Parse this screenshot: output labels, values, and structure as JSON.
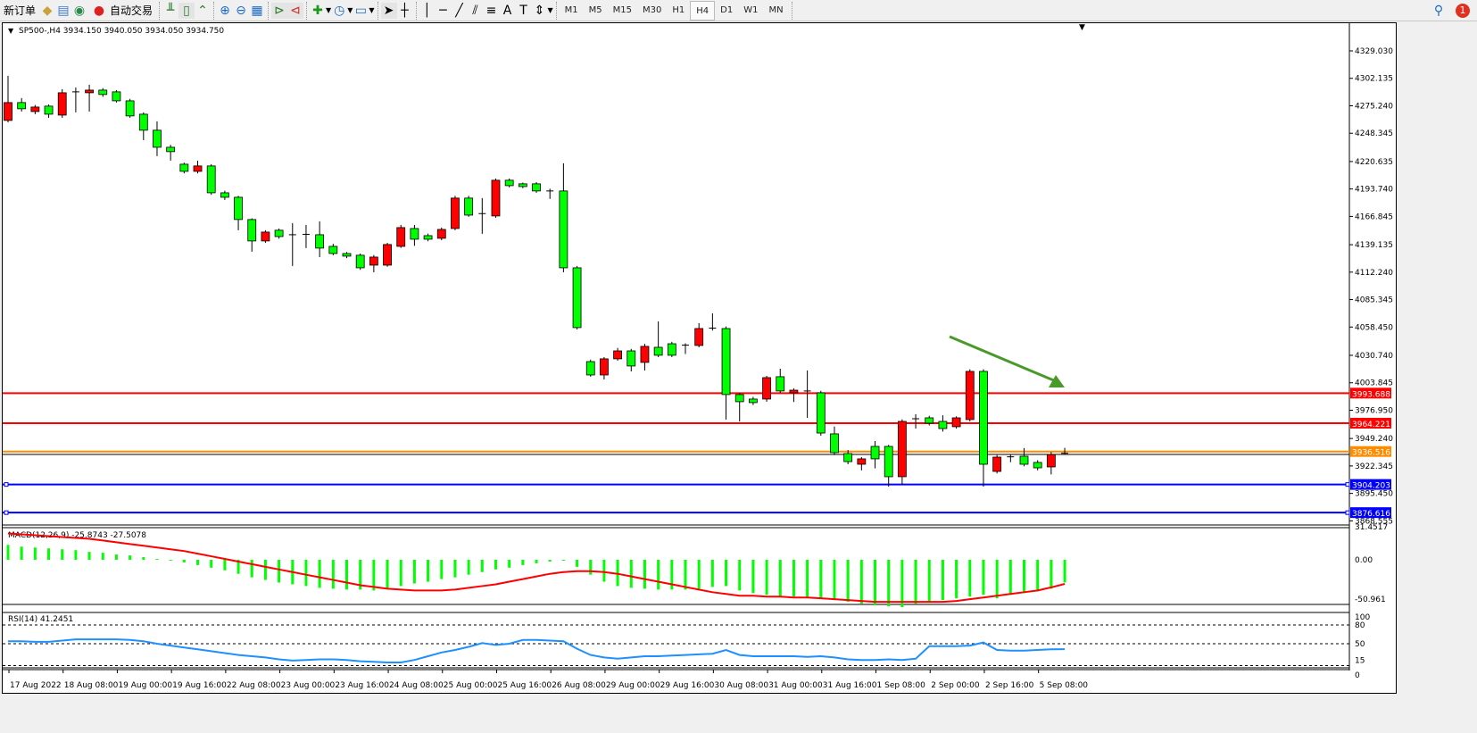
{
  "toolbar": {
    "new_order": "新订单",
    "auto_trading": "自动交易",
    "icons": [
      "gold-bars-icon",
      "market-watch-icon",
      "signal-icon",
      "auto-trading-icon",
      "bar-chart-icon",
      "candlestick-icon",
      "line-chart-icon",
      "zoom-in-icon",
      "zoom-out-icon",
      "tile-windows-icon",
      "autoscroll-icon",
      "chart-shift-icon",
      "new-chart-icon",
      "clock-icon",
      "templates-icon",
      "cursor-icon",
      "crosshair-icon",
      "vertical-line-icon",
      "horizontal-line-icon",
      "trendline-icon",
      "fibonacci-icon",
      "fibo-fan-icon",
      "text-icon",
      "text-label-icon",
      "arrows-icon"
    ],
    "timeframes": [
      "M1",
      "M5",
      "M15",
      "M30",
      "H1",
      "H4",
      "D1",
      "W1",
      "MN"
    ],
    "selected_timeframe": "H4",
    "notification_count": "1"
  },
  "chart": {
    "header": "SP500-,H4  3934.150 3940.050 3934.050 3934.750",
    "bull_color": "#ff0000",
    "bear_color": "#00ff00",
    "price_ticks": [
      "4329.030",
      "4302.135",
      "4275.240",
      "4248.345",
      "4220.635",
      "4193.740",
      "4166.845",
      "4139.135",
      "4112.240",
      "4085.345",
      "4058.450",
      "4030.740",
      "4003.845",
      "3976.950",
      "3949.240",
      "3922.345",
      "3895.450",
      "3868.555"
    ],
    "hlines": [
      {
        "price": 3993.688,
        "label": "3993.688",
        "color": "#ff0000"
      },
      {
        "price": 3964.221,
        "label": "3964.221",
        "color": "#ff0000"
      },
      {
        "price": 3936.516,
        "label": "3936.516",
        "color": "#ff8c00"
      },
      {
        "price": 3904.203,
        "label": "3904.203",
        "color": "#0000ff"
      },
      {
        "price": 3876.616,
        "label": "3876.616",
        "color": "#0000ff"
      }
    ],
    "arrow_color": "#4a9a2a",
    "candles": [
      [
        4260.9,
        4304.6,
        4259,
        4278.4
      ],
      [
        4278.4,
        4282.8,
        4269.6,
        4272.3
      ],
      [
        4269.6,
        4276,
        4267,
        4274
      ],
      [
        4274.9,
        4276.5,
        4263.5,
        4267
      ],
      [
        4266.1,
        4291.5,
        4263.5,
        4288
      ],
      [
        4288.9,
        4293.2,
        4268.8,
        4288.5
      ],
      [
        4288,
        4295.9,
        4269.6,
        4290.6
      ],
      [
        4290.6,
        4292.5,
        4284,
        4286.3
      ],
      [
        4288.9,
        4290.6,
        4278.4,
        4280.1
      ],
      [
        4280.1,
        4282,
        4263.5,
        4265.3
      ],
      [
        4267,
        4268.8,
        4241.6,
        4251.3
      ],
      [
        4251.3,
        4260,
        4225.9,
        4234.6
      ],
      [
        4234.6,
        4237,
        4221.5,
        4230.3
      ],
      [
        4218,
        4219.5,
        4209,
        4211
      ],
      [
        4211,
        4221.5,
        4209,
        4216.3
      ],
      [
        4216.3,
        4218,
        4188,
        4190
      ],
      [
        4190,
        4192,
        4183,
        4185.6
      ],
      [
        4185.6,
        4187,
        4153.3,
        4163.8
      ],
      [
        4163.8,
        4165,
        4132.3,
        4142.8
      ],
      [
        4142.8,
        4153.3,
        4141,
        4151.5
      ],
      [
        4153.3,
        4155,
        4145,
        4147.1
      ],
      [
        4148.9,
        4160.3,
        4118.3,
        4148.5
      ],
      [
        4148.9,
        4158.5,
        4135.8,
        4149.3
      ],
      [
        4148.9,
        4162,
        4127,
        4135.8
      ],
      [
        4137.5,
        4140,
        4128.8,
        4130.5
      ],
      [
        4130.5,
        4132,
        4126,
        4127.9
      ],
      [
        4128.8,
        4130.5,
        4114.5,
        4116.5
      ],
      [
        4119.1,
        4129,
        4112.1,
        4127
      ],
      [
        4119.1,
        4141,
        4117.5,
        4139.3
      ],
      [
        4137.5,
        4158.5,
        4136,
        4155.9
      ],
      [
        4155,
        4158.5,
        4138,
        4144.5
      ],
      [
        4148,
        4150,
        4142.5,
        4144.5
      ],
      [
        4145.4,
        4155.9,
        4143.5,
        4154.1
      ],
      [
        4155,
        4187,
        4153.3,
        4184.8
      ],
      [
        4184.8,
        4187,
        4166.5,
        4168.1
      ],
      [
        4169,
        4184.8,
        4149.8,
        4169.6
      ],
      [
        4167.3,
        4204,
        4165.5,
        4202.3
      ],
      [
        4202.3,
        4204,
        4195.3,
        4197
      ],
      [
        4198.8,
        4200,
        4194.5,
        4196.1
      ],
      [
        4198.8,
        4200.5,
        4190,
        4191.8
      ],
      [
        4191.8,
        4194,
        4184,
        4191.5
      ],
      [
        4191.8,
        4218.9,
        4112.1,
        4116.5
      ],
      [
        4116.5,
        4118.3,
        4056,
        4057.9
      ],
      [
        4024.6,
        4026.5,
        4009.8,
        4011.5
      ],
      [
        4011.5,
        4029,
        4007.1,
        4027.3
      ],
      [
        4027.3,
        4038,
        4025.5,
        4035.1
      ],
      [
        4035.1,
        4037,
        4015,
        4020.3
      ],
      [
        4023.8,
        4042,
        4015.9,
        4039.5
      ],
      [
        4038.6,
        4064,
        4029,
        4030.8
      ],
      [
        4042.1,
        4044,
        4029,
        4030.8
      ],
      [
        4040.4,
        4042.5,
        4032,
        4040.7
      ],
      [
        4040.4,
        4062.3,
        4038.6,
        4057
      ],
      [
        4057,
        4071.9,
        4055,
        4057.4
      ],
      [
        4057,
        4059,
        3967.8,
        3992.3
      ],
      [
        3992.3,
        3994,
        3966,
        3985.3
      ],
      [
        3987.9,
        3990,
        3982,
        3984.4
      ],
      [
        3987.9,
        4010.6,
        3985.3,
        4008.9
      ],
      [
        4009.8,
        4017.6,
        3994,
        3995.8
      ],
      [
        3994,
        3998.5,
        3985,
        3996.6
      ],
      [
        3995.8,
        4015.9,
        3969.5,
        3995.5
      ],
      [
        3994,
        3996,
        3952,
        3954.6
      ],
      [
        3953.8,
        3961,
        3933,
        3935.4
      ],
      [
        3934.5,
        3938,
        3924,
        3926.6
      ],
      [
        3924,
        3931,
        3918,
        3929.3
      ],
      [
        3941.5,
        3946.8,
        3920,
        3929.3
      ],
      [
        3941.5,
        3943,
        3902.1,
        3911.8
      ],
      [
        3911.8,
        3968,
        3903.9,
        3966
      ],
      [
        3968.6,
        3973,
        3959,
        3968.3
      ],
      [
        3969.5,
        3971.5,
        3962,
        3964.3
      ],
      [
        3966,
        3972,
        3956,
        3959
      ],
      [
        3960.8,
        3971,
        3959,
        3969.5
      ],
      [
        3967.8,
        4017,
        3966,
        4015
      ],
      [
        4015,
        4017,
        3902.1,
        3924
      ],
      [
        3917,
        3933,
        3915,
        3931
      ],
      [
        3931,
        3934,
        3926,
        3931.3
      ],
      [
        3931.9,
        3939.8,
        3922,
        3924
      ],
      [
        3925.8,
        3928,
        3918,
        3920.5
      ],
      [
        3921.4,
        3936,
        3914,
        3933.6
      ],
      [
        3934.15,
        3940.05,
        3934.05,
        3934.75
      ]
    ],
    "time_labels": [
      "17 Aug 2022",
      "18 Aug 08:00",
      "19 Aug 00:00",
      "19 Aug 16:00",
      "22 Aug 08:00",
      "23 Aug 00:00",
      "23 Aug 16:00",
      "24 Aug 08:00",
      "25 Aug 00:00",
      "25 Aug 16:00",
      "26 Aug 08:00",
      "29 Aug 00:00",
      "29 Aug 16:00",
      "30 Aug 08:00",
      "31 Aug 00:00",
      "31 Aug 16:00",
      "1 Sep 08:00",
      "2 Sep 00:00",
      "2 Sep 16:00",
      "5 Sep 08:00"
    ]
  },
  "macd": {
    "label": "MACD(12,26,9) -25.8743 -27.5078",
    "ticks": [
      "31.4517",
      "0.00",
      "-50.961"
    ],
    "hist_color": "#00ff00",
    "signal_color": "#ff0000",
    "main": [
      17,
      15,
      14,
      13,
      12,
      11,
      9,
      8,
      6,
      5,
      3,
      1,
      -1,
      -3,
      -6,
      -9,
      -12,
      -16,
      -20,
      -23,
      -26,
      -28,
      -30,
      -32,
      -33,
      -34,
      -34,
      -35,
      -33,
      -30,
      -27,
      -25,
      -22,
      -20,
      -17,
      -14,
      -11,
      -9,
      -6,
      -4,
      -2,
      -1,
      -8,
      -17,
      -25,
      -30,
      -32,
      -33,
      -34,
      -34,
      -34,
      -33,
      -31,
      -30,
      -35,
      -38,
      -40,
      -42,
      -42,
      -43,
      -44,
      -46,
      -48,
      -50,
      -52,
      -53,
      -54,
      -50,
      -48,
      -46,
      -44,
      -42,
      -40,
      -44,
      -40,
      -38,
      -36,
      -33,
      -25.8743
    ],
    "signal": [
      30,
      29,
      28,
      27,
      26,
      25,
      24,
      22,
      20,
      18,
      16,
      14,
      12,
      10,
      7,
      4,
      1,
      -2,
      -5,
      -8,
      -11,
      -14,
      -17,
      -20,
      -23,
      -26,
      -29,
      -31,
      -33,
      -34,
      -35,
      -35,
      -35,
      -34,
      -32,
      -30,
      -28,
      -25,
      -22,
      -19,
      -16,
      -14,
      -13,
      -13,
      -14,
      -16,
      -19,
      -22,
      -25,
      -28,
      -31,
      -34,
      -37,
      -39,
      -41,
      -41,
      -42,
      -42,
      -43,
      -43,
      -44,
      -45,
      -46,
      -47,
      -48,
      -48,
      -48,
      -48,
      -48,
      -48,
      -47,
      -45,
      -43,
      -41,
      -39,
      -37,
      -35,
      -31.5,
      -27.5078
    ]
  },
  "rsi": {
    "label": "RSI(14) 41.2451",
    "ticks": [
      "100",
      "80",
      "50",
      "15",
      "0"
    ],
    "levels": [
      80,
      50,
      15
    ],
    "color": "#1e90ff",
    "values": [
      54,
      54,
      53,
      53,
      55,
      57,
      57,
      57,
      57,
      56,
      54,
      50,
      47,
      44,
      41,
      38,
      35,
      32,
      30,
      28,
      25,
      23,
      24,
      25,
      25,
      24,
      22,
      21,
      20,
      20,
      24,
      30,
      36,
      40,
      45,
      51,
      48,
      50,
      56,
      56,
      55,
      54,
      42,
      32,
      28,
      26,
      28,
      30,
      30,
      31,
      32,
      33,
      34,
      40,
      32,
      30,
      30,
      30,
      30,
      29,
      30,
      28,
      25,
      24,
      24,
      25,
      24,
      26,
      46,
      46,
      46,
      47,
      52,
      40,
      39,
      39,
      40,
      41,
      41.2451
    ]
  }
}
